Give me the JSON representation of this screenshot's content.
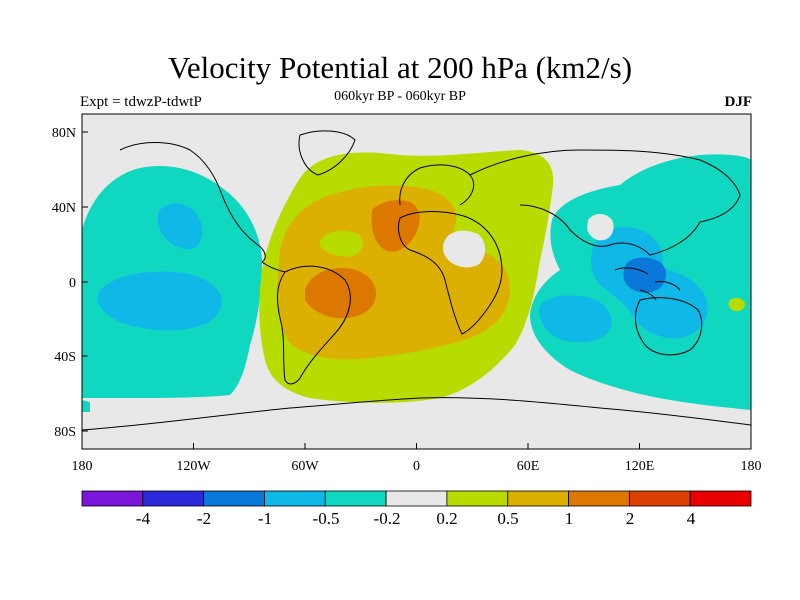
{
  "header": {
    "title": "Velocity Potential at 200 hPa (km2/s)",
    "experiment": "Expt = tdwzP-tdwtP",
    "period": "060kyr BP - 060kyr BP",
    "season": "DJF"
  },
  "map": {
    "lat_ticks": [
      "80N",
      "40N",
      "0",
      "40S",
      "80S"
    ],
    "lon_ticks": [
      "180",
      "120W",
      "60W",
      "0",
      "60E",
      "120E",
      "180"
    ],
    "background_color": "#e8e8e8"
  },
  "colorbar": {
    "colors": [
      "#7a16d8",
      "#2a2ad8",
      "#0a78d8",
      "#10b8e8",
      "#10d8c0",
      "#e8e8e8",
      "#b8dc00",
      "#dcb000",
      "#dc7800",
      "#dc4000",
      "#e80000"
    ],
    "labels": [
      "-4",
      "-2",
      "-1",
      "-0.5",
      "-0.2",
      "0.2",
      "0.5",
      "1",
      "2",
      "4"
    ]
  }
}
